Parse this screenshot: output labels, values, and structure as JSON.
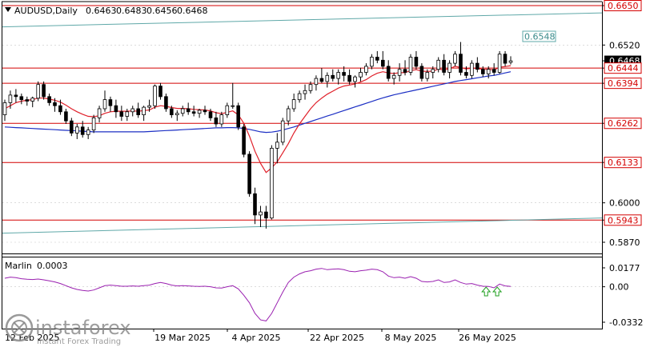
{
  "chart_data": {
    "symbol_title": "AUDUSD,Daily",
    "ohlc_header": [
      "0.6463",
      "0.6483",
      "0.6456",
      "0.6468"
    ],
    "type": "candlestick",
    "price_ticks": [
      0.665,
      0.652,
      0.6468,
      0.6444,
      0.6394,
      0.6262,
      0.6133,
      0.6,
      0.5943,
      0.587
    ],
    "price_tick_labels": [
      "0.6650",
      "0.6520",
      "0.6468",
      "0.6444",
      "0.6394",
      "0.6262",
      "0.6133",
      "0.6000",
      "0.5943",
      "0.5870"
    ],
    "boxed_levels": [
      "0.6650",
      "0.6444",
      "0.6394",
      "0.6262",
      "0.6133",
      "0.5943"
    ],
    "current_price_label": "0.6468",
    "horizontal_levels": [
      0.665,
      0.6444,
      0.6394,
      0.6262,
      0.6133,
      0.5943
    ],
    "channel_label": "0.6548",
    "date_labels": [
      "19 Mar 2025",
      "4 Apr 2025",
      "22 Apr 2025",
      "8 May 2025",
      "26 May 2025"
    ],
    "date_label_clipped_left": "12 Feb 2025",
    "ylim": [
      0.585,
      0.668
    ],
    "candles": [
      [
        0.629,
        0.634,
        0.627,
        0.633
      ],
      [
        0.633,
        0.637,
        0.631,
        0.6355
      ],
      [
        0.6355,
        0.6375,
        0.633,
        0.635
      ],
      [
        0.635,
        0.636,
        0.6325,
        0.634
      ],
      [
        0.634,
        0.635,
        0.632,
        0.6335
      ],
      [
        0.6335,
        0.635,
        0.6315,
        0.6345
      ],
      [
        0.6345,
        0.64,
        0.6335,
        0.639
      ],
      [
        0.639,
        0.64,
        0.634,
        0.635
      ],
      [
        0.635,
        0.636,
        0.632,
        0.633
      ],
      [
        0.633,
        0.6345,
        0.63,
        0.632
      ],
      [
        0.632,
        0.634,
        0.629,
        0.63
      ],
      [
        0.63,
        0.631,
        0.626,
        0.627
      ],
      [
        0.627,
        0.628,
        0.622,
        0.623
      ],
      [
        0.623,
        0.626,
        0.621,
        0.625
      ],
      [
        0.625,
        0.627,
        0.6215,
        0.6225
      ],
      [
        0.6225,
        0.625,
        0.621,
        0.624
      ],
      [
        0.624,
        0.629,
        0.623,
        0.628
      ],
      [
        0.628,
        0.632,
        0.6265,
        0.631
      ],
      [
        0.631,
        0.637,
        0.63,
        0.634
      ],
      [
        0.634,
        0.635,
        0.63,
        0.632
      ],
      [
        0.632,
        0.634,
        0.628,
        0.63
      ],
      [
        0.63,
        0.632,
        0.627,
        0.6285
      ],
      [
        0.6285,
        0.631,
        0.627,
        0.63
      ],
      [
        0.63,
        0.632,
        0.6285,
        0.631
      ],
      [
        0.631,
        0.633,
        0.628,
        0.629
      ],
      [
        0.629,
        0.632,
        0.627,
        0.6315
      ],
      [
        0.6315,
        0.634,
        0.63,
        0.632
      ],
      [
        0.632,
        0.639,
        0.631,
        0.6385
      ],
      [
        0.6385,
        0.6395,
        0.634,
        0.635
      ],
      [
        0.635,
        0.636,
        0.63,
        0.631
      ],
      [
        0.631,
        0.632,
        0.628,
        0.629
      ],
      [
        0.629,
        0.6305,
        0.627,
        0.6295
      ],
      [
        0.6295,
        0.632,
        0.6285,
        0.631
      ],
      [
        0.631,
        0.633,
        0.629,
        0.63
      ],
      [
        0.63,
        0.632,
        0.6285,
        0.6295
      ],
      [
        0.6295,
        0.631,
        0.628,
        0.6305
      ],
      [
        0.6305,
        0.632,
        0.629,
        0.63
      ],
      [
        0.63,
        0.631,
        0.627,
        0.628
      ],
      [
        0.628,
        0.63,
        0.625,
        0.626
      ],
      [
        0.626,
        0.63,
        0.625,
        0.629
      ],
      [
        0.629,
        0.633,
        0.628,
        0.632
      ],
      [
        0.632,
        0.6395,
        0.631,
        0.632
      ],
      [
        0.632,
        0.633,
        0.624,
        0.625
      ],
      [
        0.625,
        0.626,
        0.615,
        0.616
      ],
      [
        0.616,
        0.617,
        0.602,
        0.603
      ],
      [
        0.603,
        0.605,
        0.593,
        0.596
      ],
      [
        0.596,
        0.599,
        0.592,
        0.597
      ],
      [
        0.597,
        0.599,
        0.5915,
        0.595
      ],
      [
        0.595,
        0.619,
        0.5945,
        0.618
      ],
      [
        0.618,
        0.623,
        0.613,
        0.62
      ],
      [
        0.62,
        0.628,
        0.619,
        0.627
      ],
      [
        0.627,
        0.632,
        0.6255,
        0.631
      ],
      [
        0.631,
        0.636,
        0.63,
        0.634
      ],
      [
        0.634,
        0.637,
        0.633,
        0.636
      ],
      [
        0.636,
        0.639,
        0.634,
        0.637
      ],
      [
        0.637,
        0.64,
        0.636,
        0.639
      ],
      [
        0.639,
        0.642,
        0.637,
        0.641
      ],
      [
        0.641,
        0.6444,
        0.6395,
        0.64
      ],
      [
        0.64,
        0.643,
        0.638,
        0.642
      ],
      [
        0.642,
        0.644,
        0.64,
        0.641
      ],
      [
        0.641,
        0.644,
        0.639,
        0.643
      ],
      [
        0.643,
        0.645,
        0.64,
        0.642
      ],
      [
        0.642,
        0.644,
        0.639,
        0.64
      ],
      [
        0.64,
        0.642,
        0.638,
        0.6415
      ],
      [
        0.6415,
        0.6445,
        0.64,
        0.643
      ],
      [
        0.643,
        0.646,
        0.642,
        0.645
      ],
      [
        0.645,
        0.649,
        0.644,
        0.648
      ],
      [
        0.648,
        0.65,
        0.646,
        0.647
      ],
      [
        0.647,
        0.65,
        0.644,
        0.645
      ],
      [
        0.645,
        0.647,
        0.64,
        0.641
      ],
      [
        0.641,
        0.643,
        0.639,
        0.642
      ],
      [
        0.642,
        0.646,
        0.64,
        0.644
      ],
      [
        0.644,
        0.647,
        0.642,
        0.643
      ],
      [
        0.643,
        0.649,
        0.642,
        0.648
      ],
      [
        0.648,
        0.65,
        0.644,
        0.645
      ],
      [
        0.645,
        0.646,
        0.64,
        0.641
      ],
      [
        0.641,
        0.644,
        0.64,
        0.643
      ],
      [
        0.643,
        0.645,
        0.641,
        0.644
      ],
      [
        0.644,
        0.648,
        0.643,
        0.647
      ],
      [
        0.647,
        0.649,
        0.642,
        0.643
      ],
      [
        0.643,
        0.647,
        0.641,
        0.646
      ],
      [
        0.646,
        0.65,
        0.645,
        0.649
      ],
      [
        0.649,
        0.653,
        0.642,
        0.643
      ],
      [
        0.643,
        0.645,
        0.641,
        0.642
      ],
      [
        0.642,
        0.647,
        0.641,
        0.646
      ],
      [
        0.646,
        0.648,
        0.643,
        0.644
      ],
      [
        0.644,
        0.645,
        0.6415,
        0.6425
      ],
      [
        0.6425,
        0.645,
        0.641,
        0.644
      ],
      [
        0.644,
        0.646,
        0.642,
        0.643
      ],
      [
        0.643,
        0.65,
        0.6425,
        0.649
      ],
      [
        0.649,
        0.65,
        0.645,
        0.646
      ],
      [
        0.6463,
        0.6483,
        0.6456,
        0.6468
      ]
    ],
    "ema_fast": [
      0.631,
      0.632,
      0.633,
      0.6335,
      0.6338,
      0.634,
      0.6345,
      0.6345,
      0.6342,
      0.6338,
      0.6332,
      0.6322,
      0.631,
      0.63,
      0.6292,
      0.6285,
      0.6284,
      0.6287,
      0.6295,
      0.63,
      0.6302,
      0.6302,
      0.6302,
      0.6303,
      0.6302,
      0.6304,
      0.6306,
      0.6315,
      0.632,
      0.6318,
      0.6314,
      0.6311,
      0.6311,
      0.631,
      0.6308,
      0.6307,
      0.6306,
      0.6303,
      0.6297,
      0.6294,
      0.6298,
      0.6303,
      0.629,
      0.6262,
      0.622,
      0.617,
      0.613,
      0.61,
      0.6115,
      0.6135,
      0.6165,
      0.6195,
      0.623,
      0.626,
      0.6285,
      0.631,
      0.633,
      0.6345,
      0.6358,
      0.6368,
      0.6378,
      0.6385,
      0.6388,
      0.6392,
      0.6398,
      0.6406,
      0.6418,
      0.6427,
      0.6432,
      0.6428,
      0.6426,
      0.6429,
      0.6429,
      0.6436,
      0.6439,
      0.6434,
      0.6433,
      0.6434,
      0.6441,
      0.6438,
      0.6442,
      0.645,
      0.6446,
      0.6441,
      0.6444,
      0.6443,
      0.644,
      0.644,
      0.6438,
      0.6447,
      0.6449,
      0.6452
    ],
    "sma_slow": [
      0.625,
      0.6249,
      0.6248,
      0.6247,
      0.6246,
      0.6245,
      0.6244,
      0.6243,
      0.6242,
      0.6241,
      0.624,
      0.6239,
      0.6238,
      0.6237,
      0.6236,
      0.6235,
      0.6234,
      0.6234,
      0.6234,
      0.6234,
      0.6234,
      0.6234,
      0.6234,
      0.6234,
      0.6234,
      0.6234,
      0.6235,
      0.6236,
      0.6237,
      0.6238,
      0.6239,
      0.624,
      0.6241,
      0.6242,
      0.6243,
      0.6244,
      0.6245,
      0.6246,
      0.6247,
      0.6247,
      0.6248,
      0.6248,
      0.6247,
      0.6245,
      0.6242,
      0.6238,
      0.6234,
      0.6232,
      0.6233,
      0.6236,
      0.624,
      0.6245,
      0.625,
      0.6256,
      0.6262,
      0.6268,
      0.6274,
      0.628,
      0.6286,
      0.6292,
      0.6298,
      0.6304,
      0.631,
      0.6316,
      0.6322,
      0.6328,
      0.6334,
      0.634,
      0.6346,
      0.6351,
      0.6356,
      0.636,
      0.6364,
      0.6368,
      0.6372,
      0.6376,
      0.638,
      0.6384,
      0.6388,
      0.6392,
      0.6396,
      0.64,
      0.6403,
      0.6406,
      0.6409,
      0.6412,
      0.6415,
      0.6418,
      0.642,
      0.6424,
      0.6428,
      0.6432
    ],
    "indicator": {
      "name": "Marlin",
      "header_value": "0.0003",
      "tick_labels": [
        "0.0177",
        "0.00",
        "-0.0332"
      ],
      "ylim": [
        -0.034,
        0.019
      ],
      "values": [
        0.008,
        0.009,
        0.0085,
        0.0075,
        0.007,
        0.0068,
        0.0072,
        0.0065,
        0.0055,
        0.0045,
        0.003,
        0.001,
        -0.001,
        -0.0025,
        -0.0035,
        -0.004,
        -0.003,
        -0.001,
        0.001,
        0.0015,
        0.001,
        0.0005,
        0.0005,
        0.0008,
        0.0005,
        0.001,
        0.0015,
        0.003,
        0.004,
        0.003,
        0.0015,
        0.0008,
        0.001,
        0.0008,
        0.0005,
        0.0003,
        0.0005,
        0.0,
        -0.001,
        -0.0012,
        0.0,
        0.001,
        -0.002,
        -0.008,
        -0.015,
        -0.025,
        -0.031,
        -0.032,
        -0.025,
        -0.015,
        -0.005,
        0.004,
        0.009,
        0.012,
        0.014,
        0.015,
        0.0165,
        0.0172,
        0.016,
        0.0165,
        0.0168,
        0.016,
        0.0145,
        0.014,
        0.015,
        0.0155,
        0.0165,
        0.016,
        0.014,
        0.01,
        0.0085,
        0.009,
        0.008,
        0.0095,
        0.008,
        0.005,
        0.0045,
        0.005,
        0.0065,
        0.004,
        0.0045,
        0.0065,
        0.004,
        0.0025,
        0.003,
        0.0015,
        0.0005,
        0.0003,
        -0.001,
        0.0025,
        0.0008,
        0.0003
      ],
      "up_arrows_at": [
        87,
        89
      ]
    },
    "channel_upper": [
      0.658,
      0.6626
    ],
    "channel_lower": [
      0.59,
      0.595
    ]
  },
  "watermark": {
    "brand": "instaforex",
    "tagline": "Instant Forex Trading"
  },
  "colors": {
    "bull_body": "#ffffff",
    "bear_body": "#000000",
    "level_line": "#d40000",
    "channel": "#5fa8a8",
    "ema_fast": "#e0202a",
    "sma_slow": "#1c2fc4",
    "indicator": "#9a20b0",
    "arrow": "#22a022",
    "grid": "#c8c8c8"
  }
}
